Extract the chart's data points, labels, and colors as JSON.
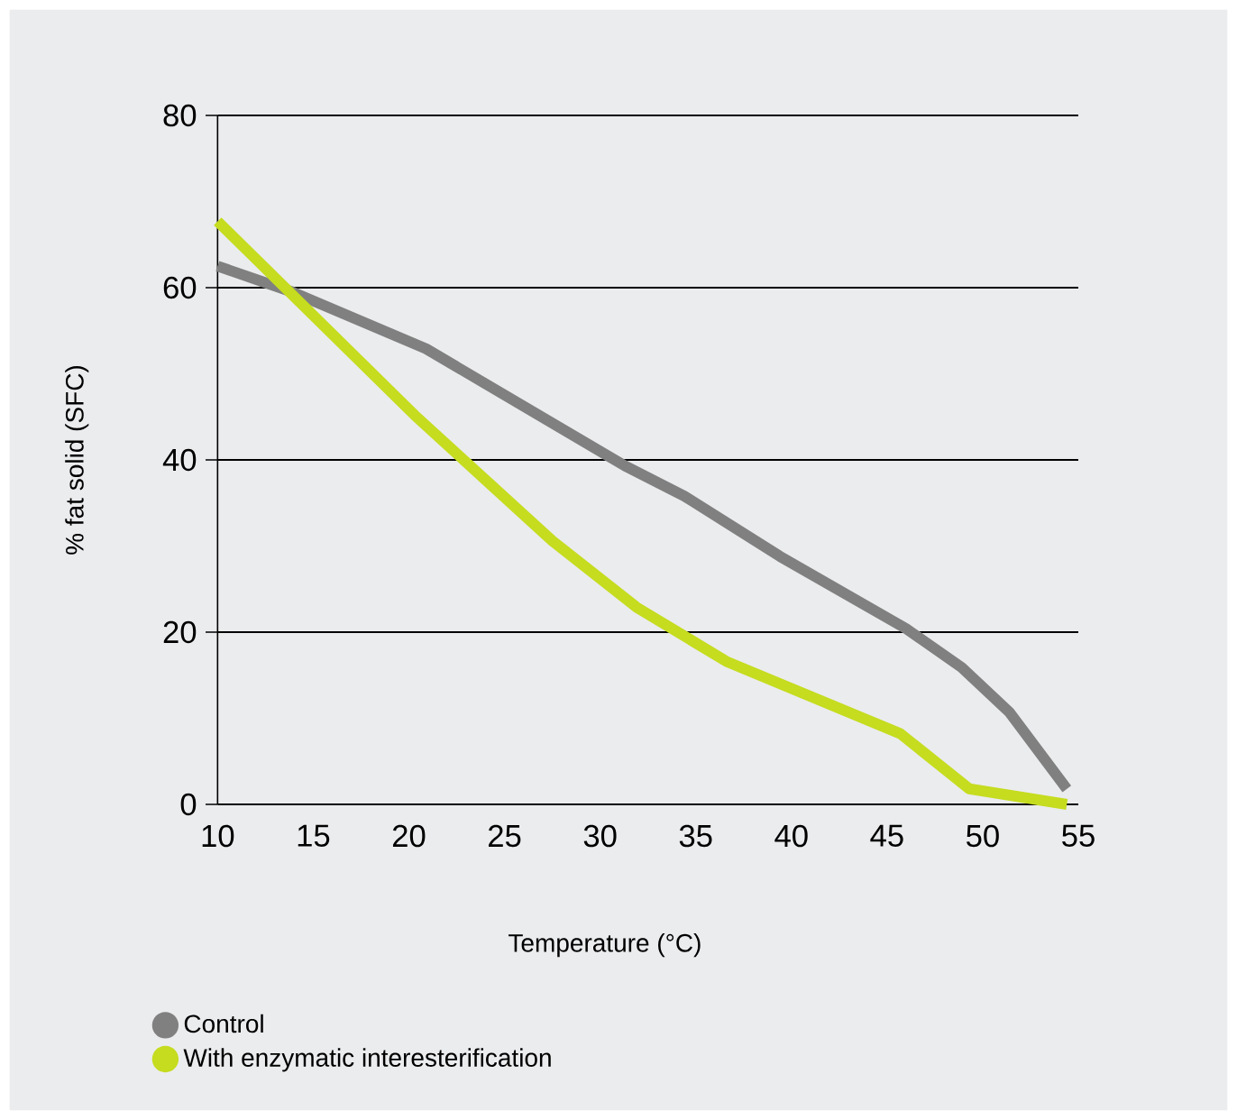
{
  "chart_data": {
    "type": "line",
    "xlabel": "Temperature (°C)",
    "ylabel": "% fat solid (SFC)",
    "xlim": [
      10,
      55
    ],
    "xticks": [
      10,
      15,
      20,
      25,
      30,
      35,
      40,
      45,
      50,
      55
    ],
    "ylim": [
      0,
      80
    ],
    "yticks": [
      0,
      20,
      40,
      60,
      80
    ],
    "grid": "y",
    "legend": "bottom left",
    "series": [
      {
        "name": "Control",
        "color": "#808080",
        "x": [
          10,
          13.9,
          20.9,
          31.3,
          34.4,
          39.4,
          46.0,
          48.9,
          51.4,
          54.4
        ],
        "values": [
          62.5,
          59.5,
          52.9,
          39.3,
          35.8,
          28.8,
          20.4,
          15.9,
          10.7,
          1.8
        ]
      },
      {
        "name": "With enzymatic interesterification",
        "color": "#c5dc1f",
        "x": [
          10,
          20.3,
          27.5,
          31.9,
          36.6,
          45.7,
          49.3,
          54.4
        ],
        "values": [
          67.7,
          45.2,
          30.6,
          22.9,
          16.6,
          8.2,
          1.8,
          0
        ]
      }
    ]
  }
}
